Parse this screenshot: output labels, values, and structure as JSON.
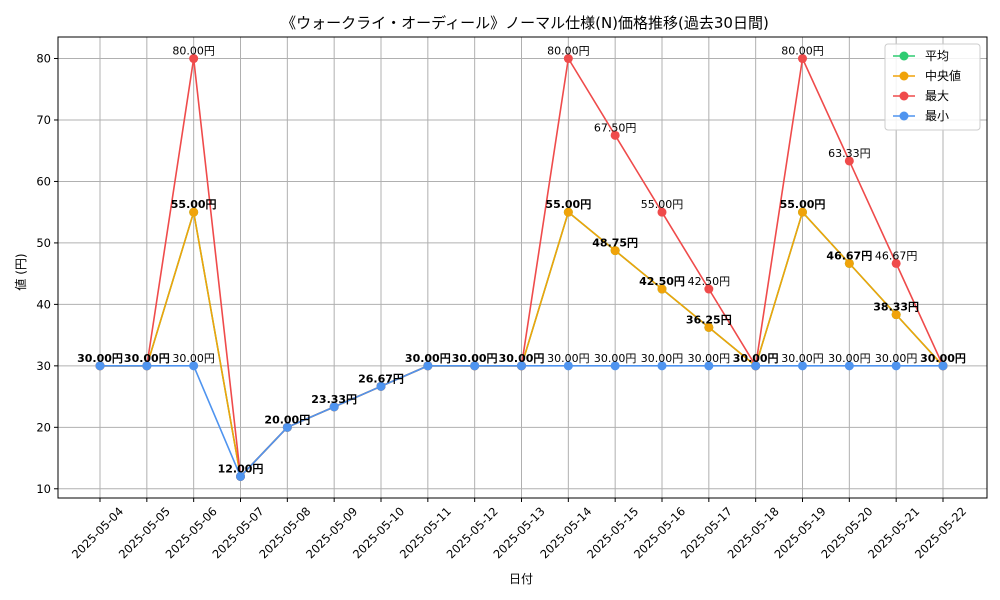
{
  "chart_data": {
    "type": "line",
    "title": "《ウォークライ・オーディール》ノーマル仕様(N)価格推移(過去30日間)",
    "xlabel": "日付",
    "ylabel": "値 (円)",
    "ylim": [
      8.5,
      83.5
    ],
    "yticks": [
      10,
      20,
      30,
      40,
      50,
      60,
      70,
      80
    ],
    "grid": true,
    "legend_position": "top-right",
    "label_suffix": "円",
    "categories": [
      "2025-05-04",
      "2025-05-05",
      "2025-05-06",
      "2025-05-07",
      "2025-05-08",
      "2025-05-09",
      "2025-05-10",
      "2025-05-11",
      "2025-05-12",
      "2025-05-13",
      "2025-05-14",
      "2025-05-15",
      "2025-05-16",
      "2025-05-17",
      "2025-05-18",
      "2025-05-19",
      "2025-05-20",
      "2025-05-21",
      "2025-05-22"
    ],
    "series": [
      {
        "name": "平均",
        "color": "#2ecc71",
        "values": [
          30,
          30,
          55,
          12,
          20,
          23.33,
          26.67,
          30,
          30,
          30,
          55,
          48.75,
          42.5,
          36.25,
          30,
          55,
          46.67,
          38.33,
          30
        ]
      },
      {
        "name": "中央値",
        "color": "#f0a30a",
        "values": [
          30,
          30,
          55,
          12,
          20,
          23.33,
          26.67,
          30,
          30,
          30,
          55,
          48.75,
          42.5,
          36.25,
          30,
          55,
          46.67,
          38.33,
          30
        ]
      },
      {
        "name": "最大",
        "color": "#ef4b4b",
        "values": [
          30,
          30,
          80,
          12,
          20,
          23.33,
          26.67,
          30,
          30,
          30,
          80,
          67.5,
          55,
          42.5,
          30,
          80,
          63.33,
          46.67,
          30
        ]
      },
      {
        "name": "最小",
        "color": "#4f94ef",
        "values": [
          30,
          30,
          30,
          12,
          20,
          23.33,
          26.67,
          30,
          30,
          30,
          30,
          30,
          30,
          30,
          30,
          30,
          30,
          30,
          30
        ]
      }
    ],
    "data_labels": {
      "bold": [
        "30.00円",
        "30.00円",
        "55.00円",
        "12.00円",
        "20.00円",
        "23.33円",
        "26.67円",
        "30.00円",
        "30.00円",
        "30.00円",
        "55.00円",
        "48.75円",
        "42.50円",
        "36.25円",
        "30.00円",
        "55.00円",
        "46.67円",
        "38.33円",
        "30.00円"
      ],
      "max": [
        "",
        "",
        "80.00円",
        "",
        "",
        "",
        "",
        "",
        "",
        "",
        "80.00円",
        "67.50円",
        "55.00円",
        "42.50円",
        "",
        "80.00円",
        "63.33円",
        "46.67円",
        ""
      ],
      "min": [
        "",
        "",
        "30.00円",
        "",
        "",
        "",
        "",
        "",
        "",
        "",
        "30.00円",
        "30.00円",
        "30.00円",
        "30.00円",
        "",
        "30.00円",
        "30.00円",
        "30.00円",
        ""
      ]
    }
  }
}
